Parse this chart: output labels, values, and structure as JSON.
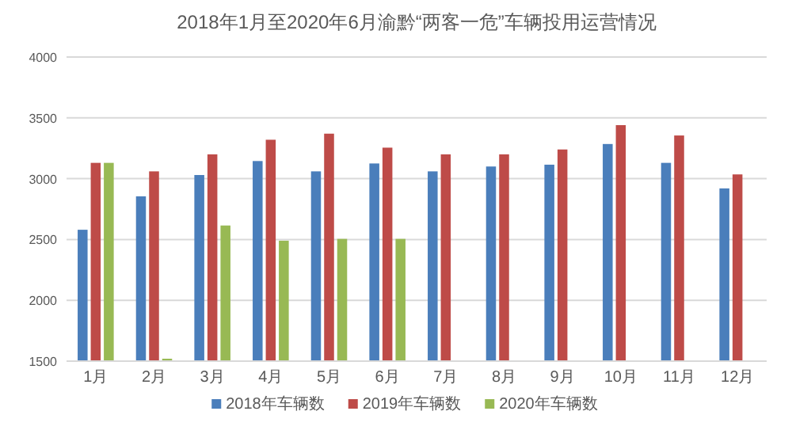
{
  "chart_data": {
    "type": "bar",
    "title": "2018年1月至2020年6月渝黔“两客一危”车辆投用运营情况",
    "categories": [
      "1月",
      "2月",
      "3月",
      "4月",
      "5月",
      "6月",
      "7月",
      "8月",
      "9月",
      "10月",
      "11月",
      "12月"
    ],
    "series": [
      {
        "name": "2018年车辆数",
        "color": "#4a7ebb",
        "values": [
          2580,
          2855,
          3030,
          3145,
          3060,
          3125,
          3060,
          3100,
          3115,
          3285,
          3130,
          2920
        ]
      },
      {
        "name": "2019年车辆数",
        "color": "#be4b48",
        "values": [
          3130,
          3060,
          3200,
          3320,
          3370,
          3255,
          3200,
          3200,
          3240,
          3440,
          3355,
          3035
        ]
      },
      {
        "name": "2020年车辆数",
        "color": "#98b954",
        "values": [
          3130,
          1520,
          2615,
          2490,
          2505,
          2505,
          null,
          null,
          null,
          null,
          null,
          null
        ]
      }
    ],
    "ylim": [
      1500,
      4000
    ],
    "yticks": [
      1500,
      2000,
      2500,
      3000,
      3500,
      4000
    ],
    "grid": "y",
    "legend": "bottom"
  }
}
